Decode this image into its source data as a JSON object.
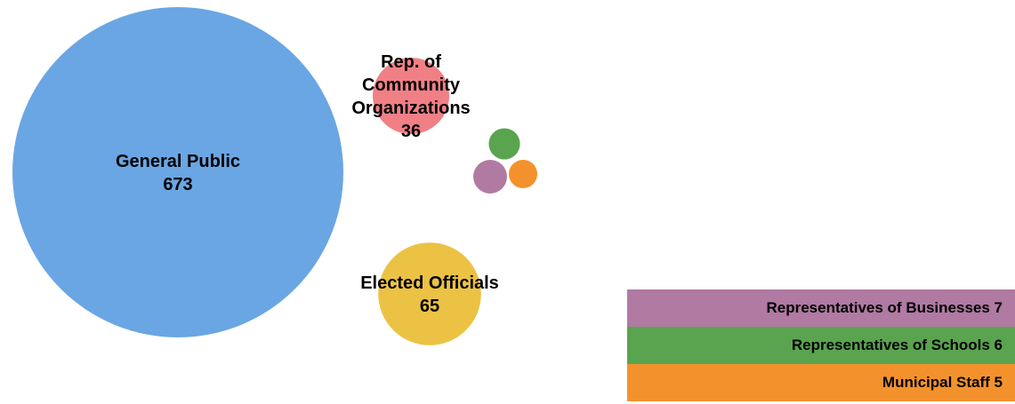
{
  "chart_data": {
    "type": "bubble",
    "series": [
      {
        "name": "General Public",
        "value": 673,
        "color": "#6aa6e3",
        "label_lines": [
          "General Public",
          "673"
        ]
      },
      {
        "name": "Rep. of Community Organizations",
        "value": 36,
        "color": "#f08085",
        "label_lines": [
          "Rep. of",
          "Community",
          "Organizations",
          "36"
        ]
      },
      {
        "name": "Elected Officials",
        "value": 65,
        "color": "#ecc244",
        "label_lines": [
          "Elected Officials",
          "65"
        ]
      },
      {
        "name": "Representatives of Schools",
        "value": 6,
        "color": "#5aa34f",
        "label_lines": []
      },
      {
        "name": "Representatives of Businesses",
        "value": 7,
        "color": "#b07aa3",
        "label_lines": []
      },
      {
        "name": "Municipal Staff",
        "value": 5,
        "color": "#f3922d",
        "label_lines": []
      }
    ],
    "legend": [
      {
        "label": "Representatives of Businesses 7",
        "color": "#b07aa3"
      },
      {
        "label": "Representatives of Schools 6",
        "color": "#5aa34f"
      },
      {
        "label": "Municipal Staff 5",
        "color": "#f3922d"
      }
    ],
    "legend_placement": "bottom-right"
  }
}
